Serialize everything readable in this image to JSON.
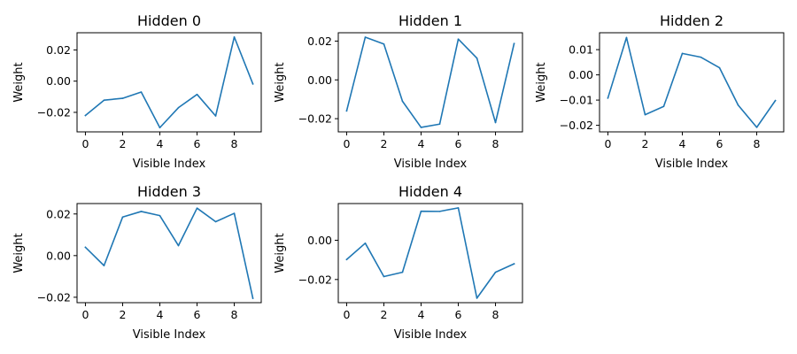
{
  "chart_data": [
    {
      "type": "line",
      "title": "Hidden 0",
      "xlabel": "Visible Index",
      "ylabel": "Weight",
      "x": [
        0,
        1,
        2,
        3,
        4,
        5,
        6,
        7,
        8,
        9
      ],
      "values": [
        -0.022,
        -0.0122,
        -0.011,
        -0.007,
        -0.0298,
        -0.017,
        -0.0085,
        -0.0223,
        0.0283,
        -0.0018
      ],
      "xlim": [
        -0.45,
        9.45
      ],
      "ylim": [
        -0.0325,
        0.031
      ],
      "xticks": [
        0,
        2,
        4,
        6,
        8
      ],
      "xtick_labels": [
        "0",
        "2",
        "4",
        "6",
        "8"
      ],
      "yticks": [
        -0.02,
        0.0,
        0.02
      ],
      "ytick_labels": [
        "−0.02",
        "0.00",
        "0.02"
      ],
      "color": "#1f77b4"
    },
    {
      "type": "line",
      "title": "Hidden 1",
      "xlabel": "Visible Index",
      "ylabel": "Weight",
      "x": [
        0,
        1,
        2,
        3,
        4,
        5,
        6,
        7,
        8,
        9
      ],
      "values": [
        -0.016,
        0.022,
        0.0185,
        -0.011,
        -0.0245,
        -0.0228,
        0.021,
        0.0112,
        -0.022,
        0.0187
      ],
      "xlim": [
        -0.45,
        9.45
      ],
      "ylim": [
        -0.0268,
        0.0243
      ],
      "xticks": [
        0,
        2,
        4,
        6,
        8
      ],
      "xtick_labels": [
        "0",
        "2",
        "4",
        "6",
        "8"
      ],
      "yticks": [
        -0.02,
        0.0,
        0.02
      ],
      "ytick_labels": [
        "−0.02",
        "0.00",
        "0.02"
      ],
      "color": "#1f77b4"
    },
    {
      "type": "line",
      "title": "Hidden 2",
      "xlabel": "Visible Index",
      "ylabel": "Weight",
      "x": [
        0,
        1,
        2,
        3,
        4,
        5,
        6,
        7,
        8,
        9
      ],
      "values": [
        -0.0092,
        0.0148,
        -0.0158,
        -0.0125,
        0.0085,
        0.007,
        0.0028,
        -0.012,
        -0.0208,
        -0.0102
      ],
      "xlim": [
        -0.45,
        9.45
      ],
      "ylim": [
        -0.0226,
        0.0167
      ],
      "xticks": [
        0,
        2,
        4,
        6,
        8
      ],
      "xtick_labels": [
        "0",
        "2",
        "4",
        "6",
        "8"
      ],
      "yticks": [
        -0.02,
        -0.01,
        0.0,
        0.01
      ],
      "ytick_labels": [
        "−0.02",
        "−0.01",
        "0.00",
        "0.01"
      ],
      "color": "#1f77b4"
    },
    {
      "type": "line",
      "title": "Hidden 3",
      "xlabel": "Visible Index",
      "ylabel": "Weight",
      "x": [
        0,
        1,
        2,
        3,
        4,
        5,
        6,
        7,
        8,
        9
      ],
      "values": [
        0.004,
        -0.0048,
        0.0185,
        0.0212,
        0.0192,
        0.0048,
        0.0228,
        0.0163,
        0.0203,
        -0.0205
      ],
      "xlim": [
        -0.45,
        9.45
      ],
      "ylim": [
        -0.0226,
        0.025
      ],
      "xticks": [
        0,
        2,
        4,
        6,
        8
      ],
      "xtick_labels": [
        "0",
        "2",
        "4",
        "6",
        "8"
      ],
      "yticks": [
        -0.02,
        0.0,
        0.02
      ],
      "ytick_labels": [
        "−0.02",
        "0.00",
        "0.02"
      ],
      "color": "#1f77b4"
    },
    {
      "type": "line",
      "title": "Hidden 4",
      "xlabel": "Visible Index",
      "ylabel": "Weight",
      "x": [
        0,
        1,
        2,
        3,
        4,
        5,
        6,
        7,
        8,
        9
      ],
      "values": [
        -0.0098,
        -0.0015,
        -0.0185,
        -0.0163,
        0.0148,
        0.0147,
        0.0165,
        -0.0295,
        -0.0163,
        -0.012
      ],
      "xlim": [
        -0.45,
        9.45
      ],
      "ylim": [
        -0.0318,
        0.0187
      ],
      "xticks": [
        0,
        2,
        4,
        6,
        8
      ],
      "xtick_labels": [
        "0",
        "2",
        "4",
        "6",
        "8"
      ],
      "yticks": [
        -0.02,
        0.0
      ],
      "ytick_labels": [
        "−0.02",
        "0.00"
      ],
      "color": "#1f77b4"
    }
  ]
}
